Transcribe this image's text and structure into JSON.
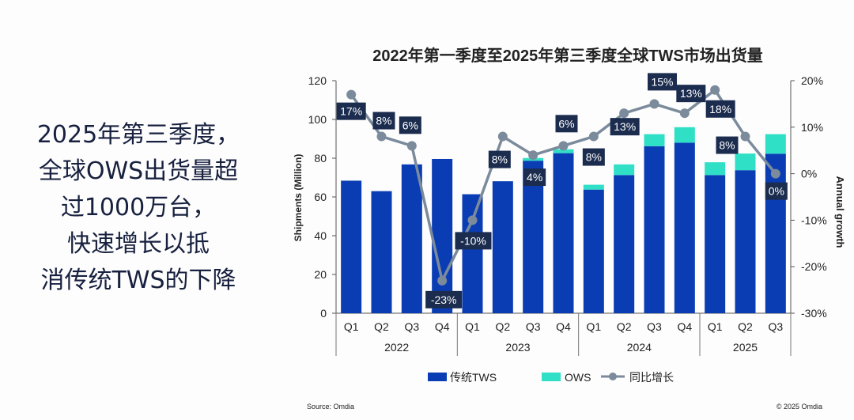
{
  "headline": [
    "2025年第三季度，",
    "全球OWS出货量超",
    "过1000万台，",
    "快速增长以抵",
    "消传统TWS的下降"
  ],
  "chart_data": {
    "type": "bar",
    "title": "2022年第一季度至2025年第三季度全球TWS市场出货量",
    "ylabel": "Shipments (Million)",
    "y2label": "Annual growth",
    "ylim": [
      0,
      120
    ],
    "yticks": [
      0,
      20,
      40,
      60,
      80,
      100,
      120
    ],
    "y2lim": [
      -30,
      20
    ],
    "y2ticks": [
      "-30%",
      "-20%",
      "-10%",
      "0%",
      "10%",
      "20%"
    ],
    "stacked": true,
    "categories": [
      "Q1",
      "Q2",
      "Q3",
      "Q4",
      "Q1",
      "Q2",
      "Q3",
      "Q4",
      "Q1",
      "Q2",
      "Q3",
      "Q4",
      "Q1",
      "Q2",
      "Q3"
    ],
    "years": [
      "2022",
      "2023",
      "2024",
      "2025"
    ],
    "series": [
      {
        "name": "传统TWS",
        "type": "bar",
        "color": "#0a3db4",
        "values": [
          68.4,
          63,
          76.8,
          79.6,
          61.4,
          68.1,
          78.7,
          82.6,
          63.8,
          71.3,
          86.2,
          88,
          71.3,
          73.8,
          82.3
        ]
      },
      {
        "name": "OWS",
        "type": "bar",
        "color": "#2fe0c6",
        "values": [
          0,
          0,
          0,
          0,
          0,
          0,
          1.4,
          2,
          2.5,
          5.5,
          6.2,
          8,
          6.6,
          8.6,
          10.1
        ]
      },
      {
        "name": "同比增长",
        "type": "line",
        "axis": "right",
        "color": "#7b8b9c",
        "values": [
          17,
          8,
          6,
          -23,
          -10,
          8,
          4,
          6,
          8,
          13,
          15,
          13,
          18,
          8,
          0
        ],
        "labels": [
          "17%",
          "8%",
          "6%",
          "-23%",
          "-10%",
          "8%",
          "4%",
          "6%",
          "8%",
          "13%",
          "15%",
          "13%",
          "18%",
          "8%",
          "0%"
        ]
      }
    ],
    "legend": "bottom",
    "grid": false
  },
  "source": "Source: Omdia",
  "copyright": "© 2025 Omdia"
}
